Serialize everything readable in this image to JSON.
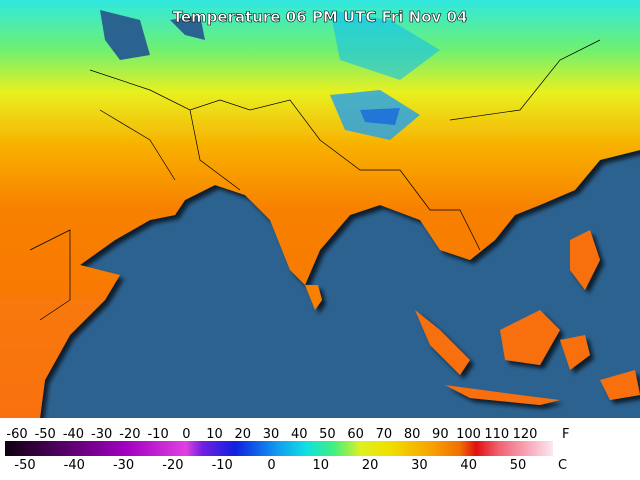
{
  "title": "Temperature 06 PM UTC Fri Nov 04",
  "legend": {
    "fahrenheit_unit": "F",
    "celsius_unit": "C",
    "fahrenheit_ticks": [
      -60,
      -50,
      -40,
      -30,
      -20,
      -10,
      0,
      10,
      20,
      30,
      40,
      50,
      60,
      70,
      80,
      90,
      100,
      110,
      120
    ],
    "celsius_ticks": [
      -50,
      -40,
      -30,
      -20,
      -10,
      0,
      10,
      20,
      30,
      40,
      50
    ]
  }
}
